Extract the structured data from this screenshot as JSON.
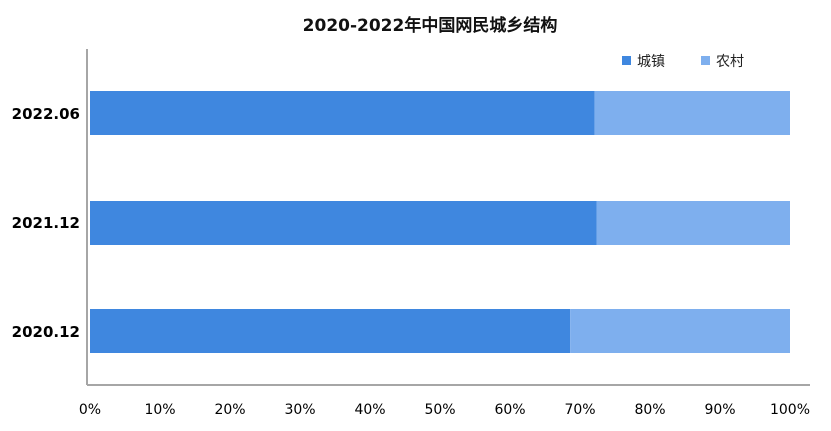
{
  "chart_data": {
    "type": "bar",
    "orientation": "horizontal",
    "stacked": true,
    "title": "2020-2022年中国网民城乡结构",
    "categories": [
      "2022.06",
      "2021.12",
      "2020.12"
    ],
    "series": [
      {
        "name": "城镇",
        "values": [
          72.1,
          72.4,
          68.6
        ],
        "color": "#3f87df"
      },
      {
        "name": "农村",
        "values": [
          27.9,
          27.6,
          31.4
        ],
        "color": "#7eafee"
      }
    ],
    "x_ticks": [
      "0%",
      "10%",
      "20%",
      "30%",
      "40%",
      "50%",
      "60%",
      "70%",
      "80%",
      "90%",
      "100%"
    ],
    "xlim": [
      0,
      100
    ],
    "grid": false,
    "legend_position": "top-right"
  }
}
